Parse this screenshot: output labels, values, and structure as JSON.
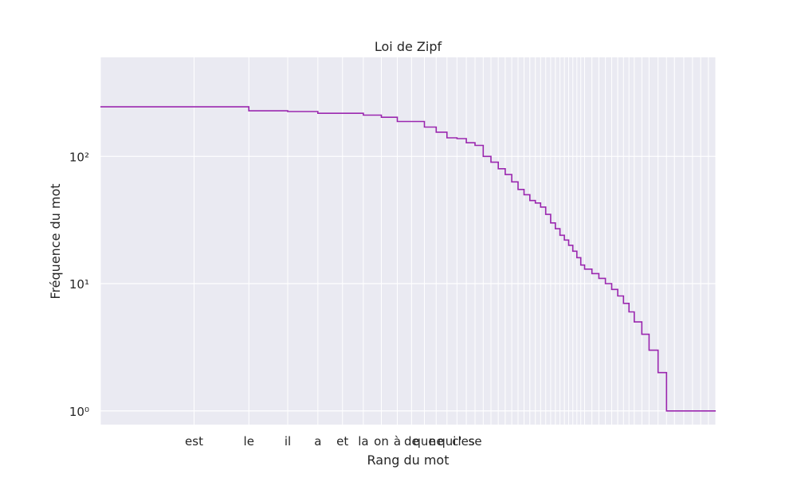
{
  "chart_data": {
    "type": "line",
    "title": "Loi de Zipf",
    "xlabel": "Rang du mot",
    "ylabel": "Fréquence du mot",
    "x_scale": "log",
    "y_scale": "log",
    "xlim": [
      1,
      95
    ],
    "ylim": [
      0.78,
      600
    ],
    "grid": true,
    "legend": "none",
    "colors": {
      "line": "#9b27af",
      "plot_bg": "#eaeaf2",
      "grid": "#ffffff"
    },
    "x_tick_labels": [
      {
        "rank": 2,
        "label": "est"
      },
      {
        "rank": 3,
        "label": "le"
      },
      {
        "rank": 4,
        "label": "il"
      },
      {
        "rank": 5,
        "label": "a"
      },
      {
        "rank": 6,
        "label": "et"
      },
      {
        "rank": 7,
        "label": "la"
      },
      {
        "rank": 8,
        "label": "on"
      },
      {
        "rank": 9,
        "label": "à"
      },
      {
        "rank": 10,
        "label": "de"
      },
      {
        "rank": 11,
        "label": "que"
      },
      {
        "rank": 12,
        "label": "ne"
      },
      {
        "rank": 13,
        "label": "qui"
      },
      {
        "rank": 14,
        "label": "c'"
      },
      {
        "rank": 15,
        "label": "les"
      },
      {
        "rank": 16,
        "label": "se"
      }
    ],
    "y_tick_labels": [
      {
        "value": 1,
        "label": "10⁰"
      },
      {
        "value": 10,
        "label": "10¹"
      },
      {
        "value": 100,
        "label": "10²"
      }
    ],
    "series": [
      {
        "x": [
          1,
          2,
          3,
          4,
          5,
          6,
          7,
          8,
          9,
          10,
          11,
          12,
          13,
          14,
          15,
          16,
          17,
          18,
          19,
          20,
          21,
          22,
          23,
          24,
          25,
          26,
          27,
          28,
          29,
          30,
          31,
          32,
          33,
          34,
          35,
          36,
          38,
          40,
          42,
          44,
          46,
          48,
          50,
          52,
          55,
          58,
          62,
          66,
          70,
          75,
          80,
          85,
          90,
          95
        ],
        "y": [
          245,
          245,
          228,
          225,
          218,
          218,
          211,
          203,
          188,
          188,
          170,
          155,
          140,
          138,
          128,
          122,
          100,
          90,
          80,
          72,
          63,
          55,
          50,
          45,
          43,
          40,
          35,
          30,
          27,
          24,
          22,
          20,
          18,
          16,
          14,
          13,
          12,
          11,
          10,
          9,
          8,
          7,
          6,
          5,
          4,
          3,
          2,
          1,
          1,
          1,
          1,
          1,
          1,
          1
        ]
      }
    ]
  }
}
